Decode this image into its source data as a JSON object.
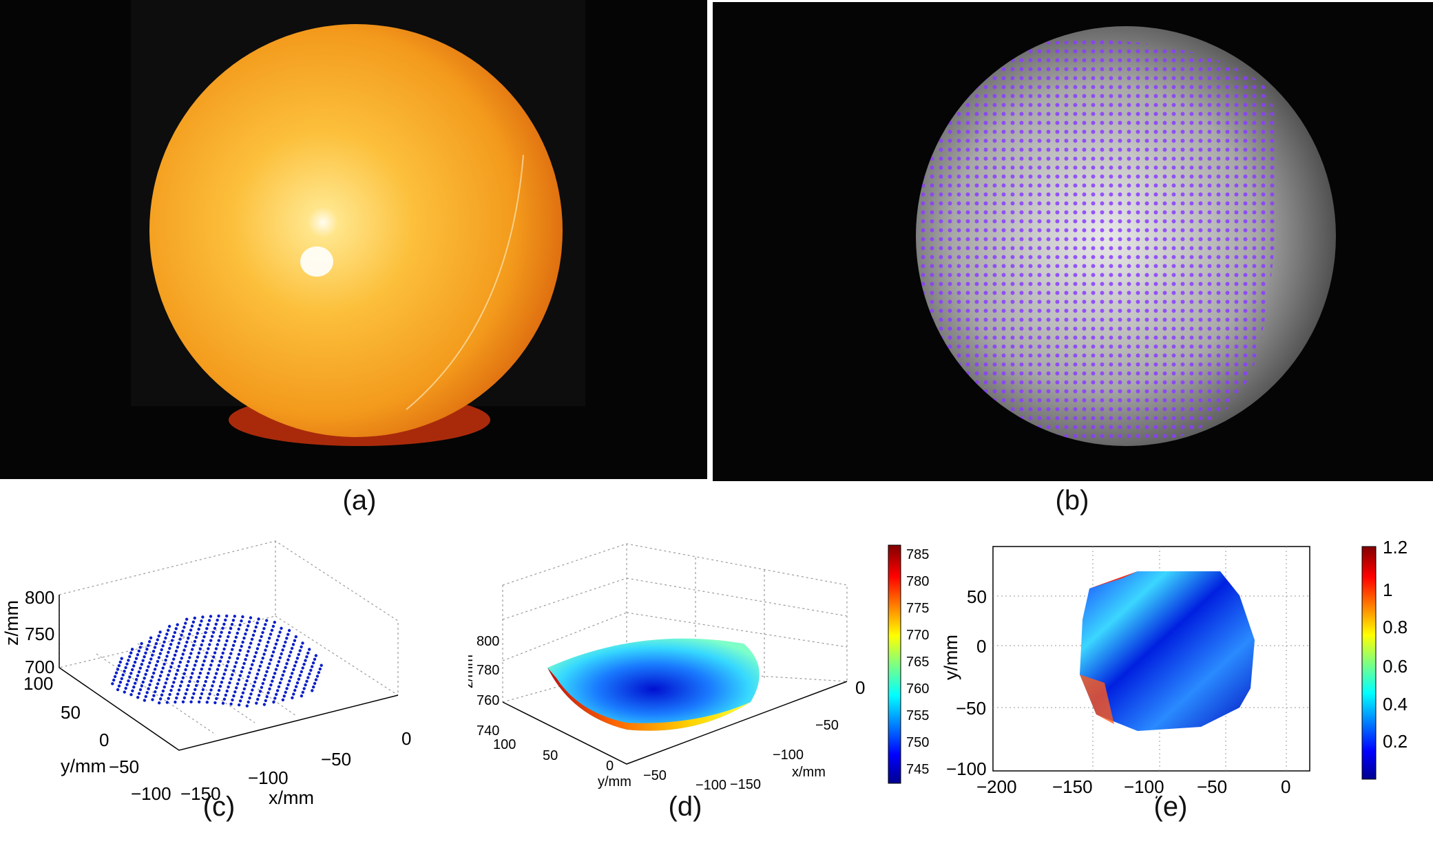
{
  "panels": [
    {
      "id": "a",
      "caption": "(a)"
    },
    {
      "id": "b",
      "caption": "(b)"
    },
    {
      "id": "c",
      "caption": "(c)"
    },
    {
      "id": "d",
      "caption": "(d)"
    },
    {
      "id": "e",
      "caption": "(e)"
    }
  ],
  "colors": {
    "sphere_orange": "#f5a623",
    "sphere_base_red": "#b8300f",
    "marker_purple": "#8a3cff",
    "point_blue": "#0a1ec8",
    "grid_gray": "#9a9a9a"
  },
  "chart_data": [
    {
      "type": "scatter",
      "panel": "c",
      "xlabel": "x/mm",
      "ylabel": "y/mm",
      "zlabel": "z/mm",
      "x_ticks": [
        "0",
        "−50",
        "−100",
        "−150"
      ],
      "y_ticks": [
        "100",
        "50",
        "0",
        "−50",
        "−100"
      ],
      "z_ticks": [
        "800",
        "750",
        "700"
      ],
      "xlim": [
        -150,
        0
      ],
      "ylim": [
        -100,
        100
      ],
      "zlim": [
        700,
        800
      ],
      "grid": true
    },
    {
      "type": "heatmap",
      "panel": "d",
      "xlabel": "x/mm",
      "ylabel": "y/mm",
      "zlabel": "z/mm",
      "x_ticks": [
        "0",
        "−50",
        "−100",
        "−150"
      ],
      "y_ticks": [
        "100",
        "50",
        "0",
        "−50",
        "−100"
      ],
      "z_ticks": [
        "800",
        "780",
        "760",
        "740"
      ],
      "colorbar_ticks": [
        "785",
        "780",
        "775",
        "770",
        "765",
        "760",
        "755",
        "750",
        "745"
      ],
      "colorbar_range": [
        741,
        786
      ],
      "grid": true
    },
    {
      "type": "heatmap",
      "panel": "e",
      "xlabel": "x/mm",
      "ylabel": "y/mm",
      "x_ticks": [
        "−200",
        "−150",
        "−100",
        "−50",
        "0"
      ],
      "y_ticks": [
        "50",
        "0",
        "−50",
        "−100"
      ],
      "xlim": [
        -200,
        40
      ],
      "ylim": [
        -100,
        80
      ],
      "colorbar_ticks": [
        "1.2",
        "1",
        "0.8",
        "0.6",
        "0.4",
        "0.2"
      ],
      "colorbar_range": [
        0,
        1.2
      ],
      "grid": true
    }
  ]
}
